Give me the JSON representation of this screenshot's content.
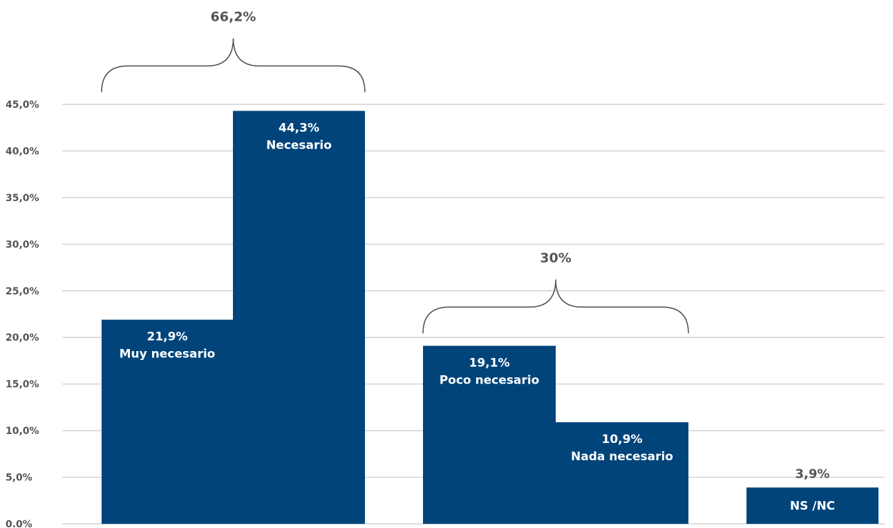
{
  "chart_data": {
    "type": "bar",
    "categories": [
      "Muy necesario",
      "Necesario",
      "Poco necesario",
      "Nada necesario",
      "NS /NC"
    ],
    "values": [
      21.9,
      44.3,
      19.1,
      10.9,
      3.9
    ],
    "value_labels": [
      "21,9%",
      "44,3%",
      "19,1%",
      "10,9%",
      "3,9%"
    ],
    "ylim": [
      0,
      45
    ],
    "yticks": [
      0,
      5,
      10,
      15,
      20,
      25,
      30,
      35,
      40,
      45
    ],
    "ytick_labels": [
      "0.0%",
      "5,0%",
      "10,0%",
      "15,0%",
      "20,0%",
      "25,0%",
      "30,0%",
      "35,0%",
      "40,0%",
      "45,0%"
    ],
    "grid": true,
    "bar_color": "#00447a",
    "groups": [
      {
        "label": "66,2%",
        "members": [
          0,
          1
        ]
      },
      {
        "label": "30%",
        "members": [
          2,
          3
        ]
      }
    ]
  }
}
